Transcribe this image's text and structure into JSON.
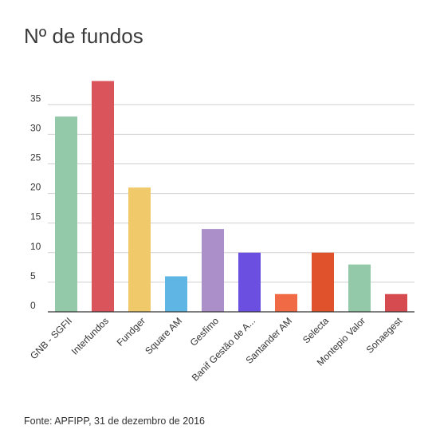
{
  "chart_data": {
    "type": "bar",
    "title": "Nº de fundos",
    "xlabel": "",
    "ylabel": "",
    "categories": [
      "GNB - SGFII",
      "Interfundos",
      "Fundger",
      "Square AM",
      "Gesfimo",
      "Banif Gestão de A...",
      "Santander AM",
      "Selecta",
      "Montepio Valor",
      "Sonaegest"
    ],
    "values": [
      33,
      39,
      21,
      6,
      14,
      10,
      3,
      10,
      8,
      3
    ],
    "colors": [
      "#93c9a8",
      "#d9545b",
      "#f0ca6a",
      "#5fb6e5",
      "#ab8fc9",
      "#6a4fe0",
      "#ef6a45",
      "#e0522b",
      "#93c9a8",
      "#d64b4f"
    ],
    "yticks": [
      0,
      5,
      10,
      15,
      20,
      25,
      30,
      35
    ],
    "ylim": [
      0,
      39
    ],
    "grid": true,
    "legend": "none"
  },
  "source": "Fonte: APFIPP, 31 de dezembro de 2016"
}
